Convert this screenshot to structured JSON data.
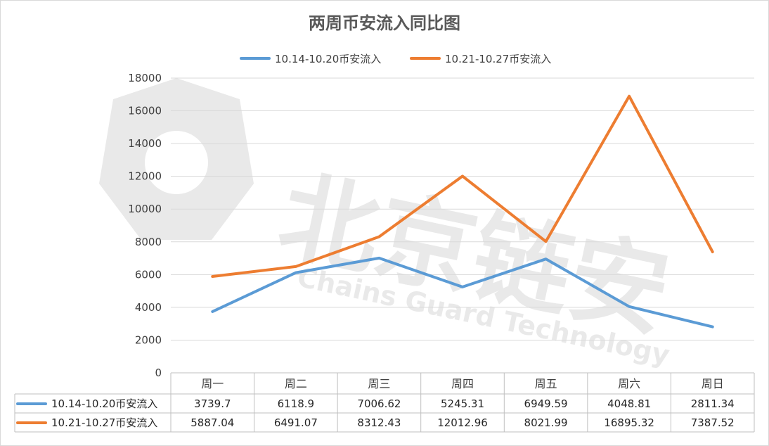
{
  "chart_data": {
    "type": "line",
    "title": "两周币安流入同比图",
    "categories": [
      "周一",
      "周二",
      "周三",
      "周四",
      "周五",
      "周六",
      "周日"
    ],
    "series": [
      {
        "name": "10.14-10.20币安流入",
        "color": "#5b9bd5",
        "values": [
          3739.7,
          6118.9,
          7006.62,
          5245.31,
          6949.59,
          4048.81,
          2811.34
        ],
        "value_labels": [
          "3739.7",
          "6118.9",
          "7006.62",
          "5245.31",
          "6949.59",
          "4048.81",
          "2811.34"
        ]
      },
      {
        "name": "10.21-10.27币安流入",
        "color": "#ed7d31",
        "values": [
          5887.04,
          6491.07,
          8312.43,
          12012.96,
          8021.99,
          16895.32,
          7387.52
        ],
        "value_labels": [
          "5887.04",
          "6491.07",
          "8312.43",
          "12012.96",
          "8021.99",
          "16895.32",
          "7387.52"
        ]
      }
    ],
    "ylim": [
      0,
      18000
    ],
    "yticks": [
      0,
      2000,
      4000,
      6000,
      8000,
      10000,
      12000,
      14000,
      16000,
      18000
    ],
    "grid": true,
    "legend_position": "top",
    "data_table": true,
    "watermark": "北京链安 Chains Guard Technology"
  }
}
